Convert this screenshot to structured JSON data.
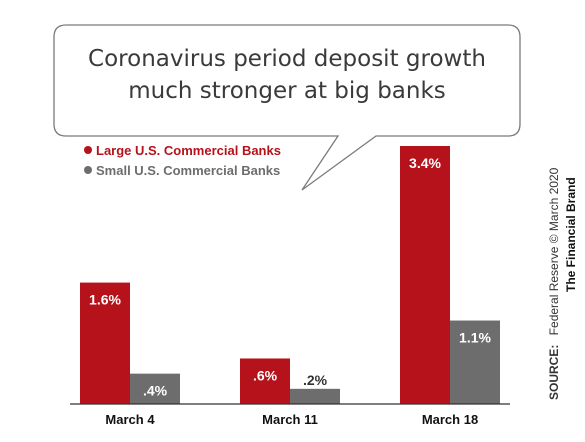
{
  "chart_data": {
    "type": "bar",
    "title_lines": [
      "Coronavirus period deposit growth",
      "much stronger at big banks"
    ],
    "categories": [
      "March 4",
      "March 11",
      "March 18"
    ],
    "series": [
      {
        "name": "Large U.S. Commercial Banks",
        "color": "#b5121b",
        "values": [
          1.6,
          0.6,
          3.4
        ],
        "labels": [
          "1.6%",
          ".6%",
          "3.4%"
        ]
      },
      {
        "name": "Small U.S. Commercial Banks",
        "color": "#6d6d6d",
        "values": [
          0.4,
          0.2,
          1.1
        ],
        "labels": [
          ".4%",
          ".2%",
          "1.1%"
        ]
      }
    ],
    "ylim": [
      0,
      3.4
    ],
    "grid": false,
    "legend_position": "top-left"
  },
  "source": {
    "label": "SOURCE:",
    "text": "Federal Reserve © March 2020",
    "brand": "The Financial Brand"
  },
  "colors": {
    "large_label": "#b5121b",
    "small_label": "#6d6d6d",
    "axis": "#333333",
    "bubble_stroke": "#7a7a7a"
  }
}
